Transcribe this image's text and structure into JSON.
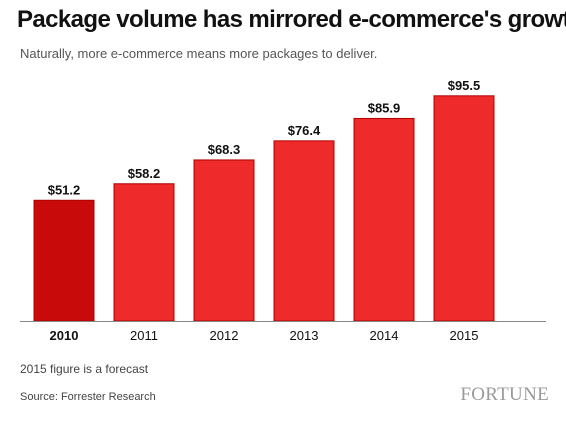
{
  "header": {
    "title": "Package volume has mirrored e-commerce's growth",
    "subtitle": "Naturally, more e-commerce means more packages to deliver."
  },
  "footer": {
    "note": "2015 figure is a forecast",
    "source": "Source: Forrester Research",
    "brand": "FORTUNE"
  },
  "chart_data": {
    "type": "bar",
    "title": "Package volume has mirrored e-commerce's growth",
    "subtitle": "Naturally, more e-commerce means more packages to deliver.",
    "categories": [
      "2010",
      "2011",
      "2012",
      "2013",
      "2014",
      "2015"
    ],
    "values": [
      51.2,
      58.2,
      68.3,
      76.4,
      85.9,
      95.5
    ],
    "value_labels": [
      "$51.2",
      "$58.2",
      "$68.3",
      "$76.4",
      "$85.9",
      "$95.5"
    ],
    "highlighted_category": "2010",
    "colors": {
      "bar": "#ee2a2a",
      "bar_highlight": "#c80a0a",
      "bar_border": "#b00000",
      "baseline": "#888888"
    },
    "grid": false,
    "legend": "none"
  }
}
